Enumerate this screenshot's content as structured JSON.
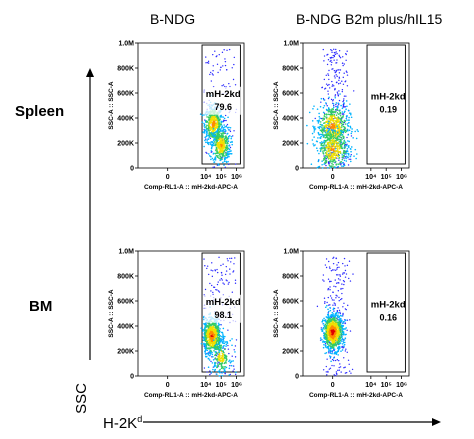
{
  "columns": [
    "B-NDG",
    "B-NDG B2m plus/hIL15"
  ],
  "rows": [
    "Spleen",
    "BM"
  ],
  "axis_y_label": "SSC",
  "axis_x_label": "H-2K",
  "axis_x_label_sup": "d",
  "chart_data": [
    {
      "type": "scatter",
      "row": "Spleen",
      "column": "B-NDG",
      "xlabel": "Comp-RL1-A :: mH-2kd-APC-A",
      "ylabel": "SSC-A :: SSC-A",
      "x_ticks": [
        "0",
        "10⁴",
        "10⁵",
        "10⁶"
      ],
      "y_ticks": [
        "0",
        "200K",
        "400K",
        "600K",
        "800K",
        "1.0M"
      ],
      "ylim": [
        0,
        1000000
      ],
      "gate": {
        "name": "mH-2kd",
        "value": "79.6"
      },
      "populations": [
        {
          "x_log": 4.5,
          "y": 350000,
          "weight": 0.55
        },
        {
          "x_log": 5.0,
          "y": 180000,
          "weight": 0.45
        }
      ],
      "background_points": 120
    },
    {
      "type": "scatter",
      "row": "Spleen",
      "column": "B-NDG B2m plus/hIL15",
      "xlabel": "Comp-RL1-A :: mH-2kd-APC-A",
      "ylabel": "SSC-A :: SSC-A",
      "x_ticks": [
        "0",
        "10⁴",
        "10⁵",
        "10⁶"
      ],
      "y_ticks": [
        "0",
        "200K",
        "400K",
        "600K",
        "800K",
        "1.0M"
      ],
      "ylim": [
        0,
        1000000
      ],
      "gate": {
        "name": "mH-2kd",
        "value": "0.19"
      },
      "populations": [
        {
          "x_log": 0,
          "y": 330000,
          "weight": 0.55,
          "spread_wide": true
        },
        {
          "x_log": 0,
          "y": 150000,
          "weight": 0.45,
          "spread_wide": true
        }
      ],
      "background_points": 300
    },
    {
      "type": "scatter",
      "row": "BM",
      "column": "B-NDG",
      "xlabel": "Comp-RL1-A :: mH-2kd-APC-A",
      "ylabel": "SSC-A :: SSC-A",
      "x_ticks": [
        "0",
        "10⁴",
        "10⁵",
        "10⁶"
      ],
      "y_ticks": [
        "0",
        "200K",
        "400K",
        "600K",
        "800K",
        "1.0M"
      ],
      "ylim": [
        0,
        1000000
      ],
      "gate": {
        "name": "mH-2kd",
        "value": "98.1"
      },
      "populations": [
        {
          "x_log": 4.4,
          "y": 320000,
          "weight": 0.8
        },
        {
          "x_log": 5.0,
          "y": 150000,
          "weight": 0.2
        }
      ],
      "background_points": 160
    },
    {
      "type": "scatter",
      "row": "BM",
      "column": "B-NDG B2m plus/hIL15",
      "xlabel": "Comp-RL1-A :: mH-2kd-APC-A",
      "ylabel": "SSC-A :: SSC-A",
      "x_ticks": [
        "0",
        "10⁴",
        "10⁵",
        "10⁶"
      ],
      "y_ticks": [
        "0",
        "200K",
        "400K",
        "600K",
        "800K",
        "1.0M"
      ],
      "ylim": [
        0,
        1000000
      ],
      "gate": {
        "name": "mH-2kd",
        "value": "0.16"
      },
      "populations": [
        {
          "x_log": 0,
          "y": 350000,
          "weight": 1.0
        }
      ],
      "background_points": 220
    }
  ]
}
